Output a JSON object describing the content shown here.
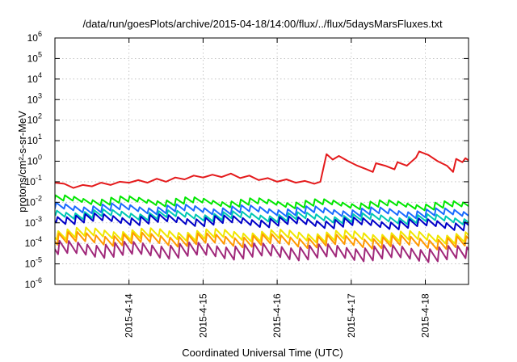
{
  "chart_data": {
    "type": "line",
    "title": "/data/run/goesPlots/archive/2015-04-18/14:00/flux/../flux/5daysMarsFluxes.txt",
    "xlabel": "Coordinated Universal Time (UTC)",
    "ylabel": "protons/cm²-s-sr-MeV",
    "y_scale": "log",
    "ylim": [
      1e-06,
      1000000.0
    ],
    "y_ticks": [
      {
        "value": 1e-06,
        "base": "10",
        "exp": "-6"
      },
      {
        "value": 1e-05,
        "base": "10",
        "exp": "-5"
      },
      {
        "value": 0.0001,
        "base": "10",
        "exp": "-4"
      },
      {
        "value": 0.001,
        "base": "10",
        "exp": "-3"
      },
      {
        "value": 0.01,
        "base": "10",
        "exp": "-2"
      },
      {
        "value": 0.1,
        "base": "10",
        "exp": "-1"
      },
      {
        "value": 1.0,
        "base": "10",
        "exp": "0"
      },
      {
        "value": 10.0,
        "base": "10",
        "exp": "1"
      },
      {
        "value": 100.0,
        "base": "10",
        "exp": "2"
      },
      {
        "value": 1000.0,
        "base": "10",
        "exp": "3"
      },
      {
        "value": 10000.0,
        "base": "10",
        "exp": "4"
      },
      {
        "value": 100000.0,
        "base": "10",
        "exp": "5"
      },
      {
        "value": 1000000.0,
        "base": "10",
        "exp": "6"
      }
    ],
    "xlim": [
      "2015-04-13T00:00",
      "2015-04-18T14:00"
    ],
    "x_ticks": [
      "2015-4-14",
      "2015-4-15",
      "2015-4-16",
      "2015-4-17",
      "2015-4-18"
    ],
    "grid": true,
    "series": [
      {
        "color": "#e41a1c",
        "points": [
          [
            "2015-04-13T00:00",
            0.09
          ],
          [
            "2015-04-13T03:00",
            0.08
          ],
          [
            "2015-04-13T06:00",
            0.05
          ],
          [
            "2015-04-13T09:00",
            0.07
          ],
          [
            "2015-04-13T12:00",
            0.06
          ],
          [
            "2015-04-13T15:00",
            0.09
          ],
          [
            "2015-04-13T18:00",
            0.07
          ],
          [
            "2015-04-13T21:00",
            0.1
          ],
          [
            "2015-04-14T00:00",
            0.09
          ],
          [
            "2015-04-14T03:00",
            0.12
          ],
          [
            "2015-04-14T06:00",
            0.09
          ],
          [
            "2015-04-14T09:00",
            0.14
          ],
          [
            "2015-04-14T12:00",
            0.1
          ],
          [
            "2015-04-14T15:00",
            0.16
          ],
          [
            "2015-04-14T18:00",
            0.13
          ],
          [
            "2015-04-14T21:00",
            0.2
          ],
          [
            "2015-04-15T00:00",
            0.16
          ],
          [
            "2015-04-15T03:00",
            0.22
          ],
          [
            "2015-04-15T06:00",
            0.17
          ],
          [
            "2015-04-15T09:00",
            0.25
          ],
          [
            "2015-04-15T12:00",
            0.15
          ],
          [
            "2015-04-15T15:00",
            0.2
          ],
          [
            "2015-04-15T18:00",
            0.12
          ],
          [
            "2015-04-15T21:00",
            0.15
          ],
          [
            "2015-04-16T00:00",
            0.1
          ],
          [
            "2015-04-16T03:00",
            0.13
          ],
          [
            "2015-04-16T06:00",
            0.09
          ],
          [
            "2015-04-16T09:00",
            0.11
          ],
          [
            "2015-04-16T12:00",
            0.08
          ],
          [
            "2015-04-16T14:00",
            0.1
          ],
          [
            "2015-04-16T16:00",
            2.2
          ],
          [
            "2015-04-16T18:00",
            1.2
          ],
          [
            "2015-04-16T20:00",
            1.8
          ],
          [
            "2015-04-16T23:00",
            1.0
          ],
          [
            "2015-04-17T02:00",
            0.6
          ],
          [
            "2015-04-17T05:00",
            0.4
          ],
          [
            "2015-04-17T07:00",
            0.3
          ],
          [
            "2015-04-17T08:00",
            0.8
          ],
          [
            "2015-04-17T11:00",
            0.6
          ],
          [
            "2015-04-17T14:00",
            0.4
          ],
          [
            "2015-04-17T15:00",
            0.9
          ],
          [
            "2015-04-17T18:00",
            0.6
          ],
          [
            "2015-04-17T21:00",
            1.5
          ],
          [
            "2015-04-17T22:00",
            3.0
          ],
          [
            "2015-04-18T01:00",
            2.0
          ],
          [
            "2015-04-18T04:00",
            1.0
          ],
          [
            "2015-04-18T07:00",
            0.6
          ],
          [
            "2015-04-18T09:00",
            0.3
          ],
          [
            "2015-04-18T10:00",
            1.3
          ],
          [
            "2015-04-18T12:00",
            0.9
          ],
          [
            "2015-04-18T13:00",
            1.4
          ],
          [
            "2015-04-18T14:00",
            1.1
          ]
        ]
      },
      {
        "color": "#00e600",
        "start": 0.018,
        "end": 0.009,
        "drop": 0.55
      },
      {
        "color": "#1a6bff",
        "start": 0.008,
        "end": 0.004,
        "drop": 0.5
      },
      {
        "color": "#00c8b4",
        "start": 0.004,
        "end": 0.002,
        "drop": 0.5
      },
      {
        "color": "#0000c8",
        "start": 0.0025,
        "end": 0.0012,
        "drop": 0.45
      },
      {
        "color": "#f0e600",
        "start": 0.0005,
        "end": 0.0003,
        "drop": 0.4
      },
      {
        "color": "#ff9900",
        "start": 0.0003,
        "end": 0.00018,
        "drop": 0.35
      },
      {
        "color": "#a0287a",
        "start": 0.00011,
        "end": 6e-05,
        "drop": 0.25
      }
    ]
  }
}
